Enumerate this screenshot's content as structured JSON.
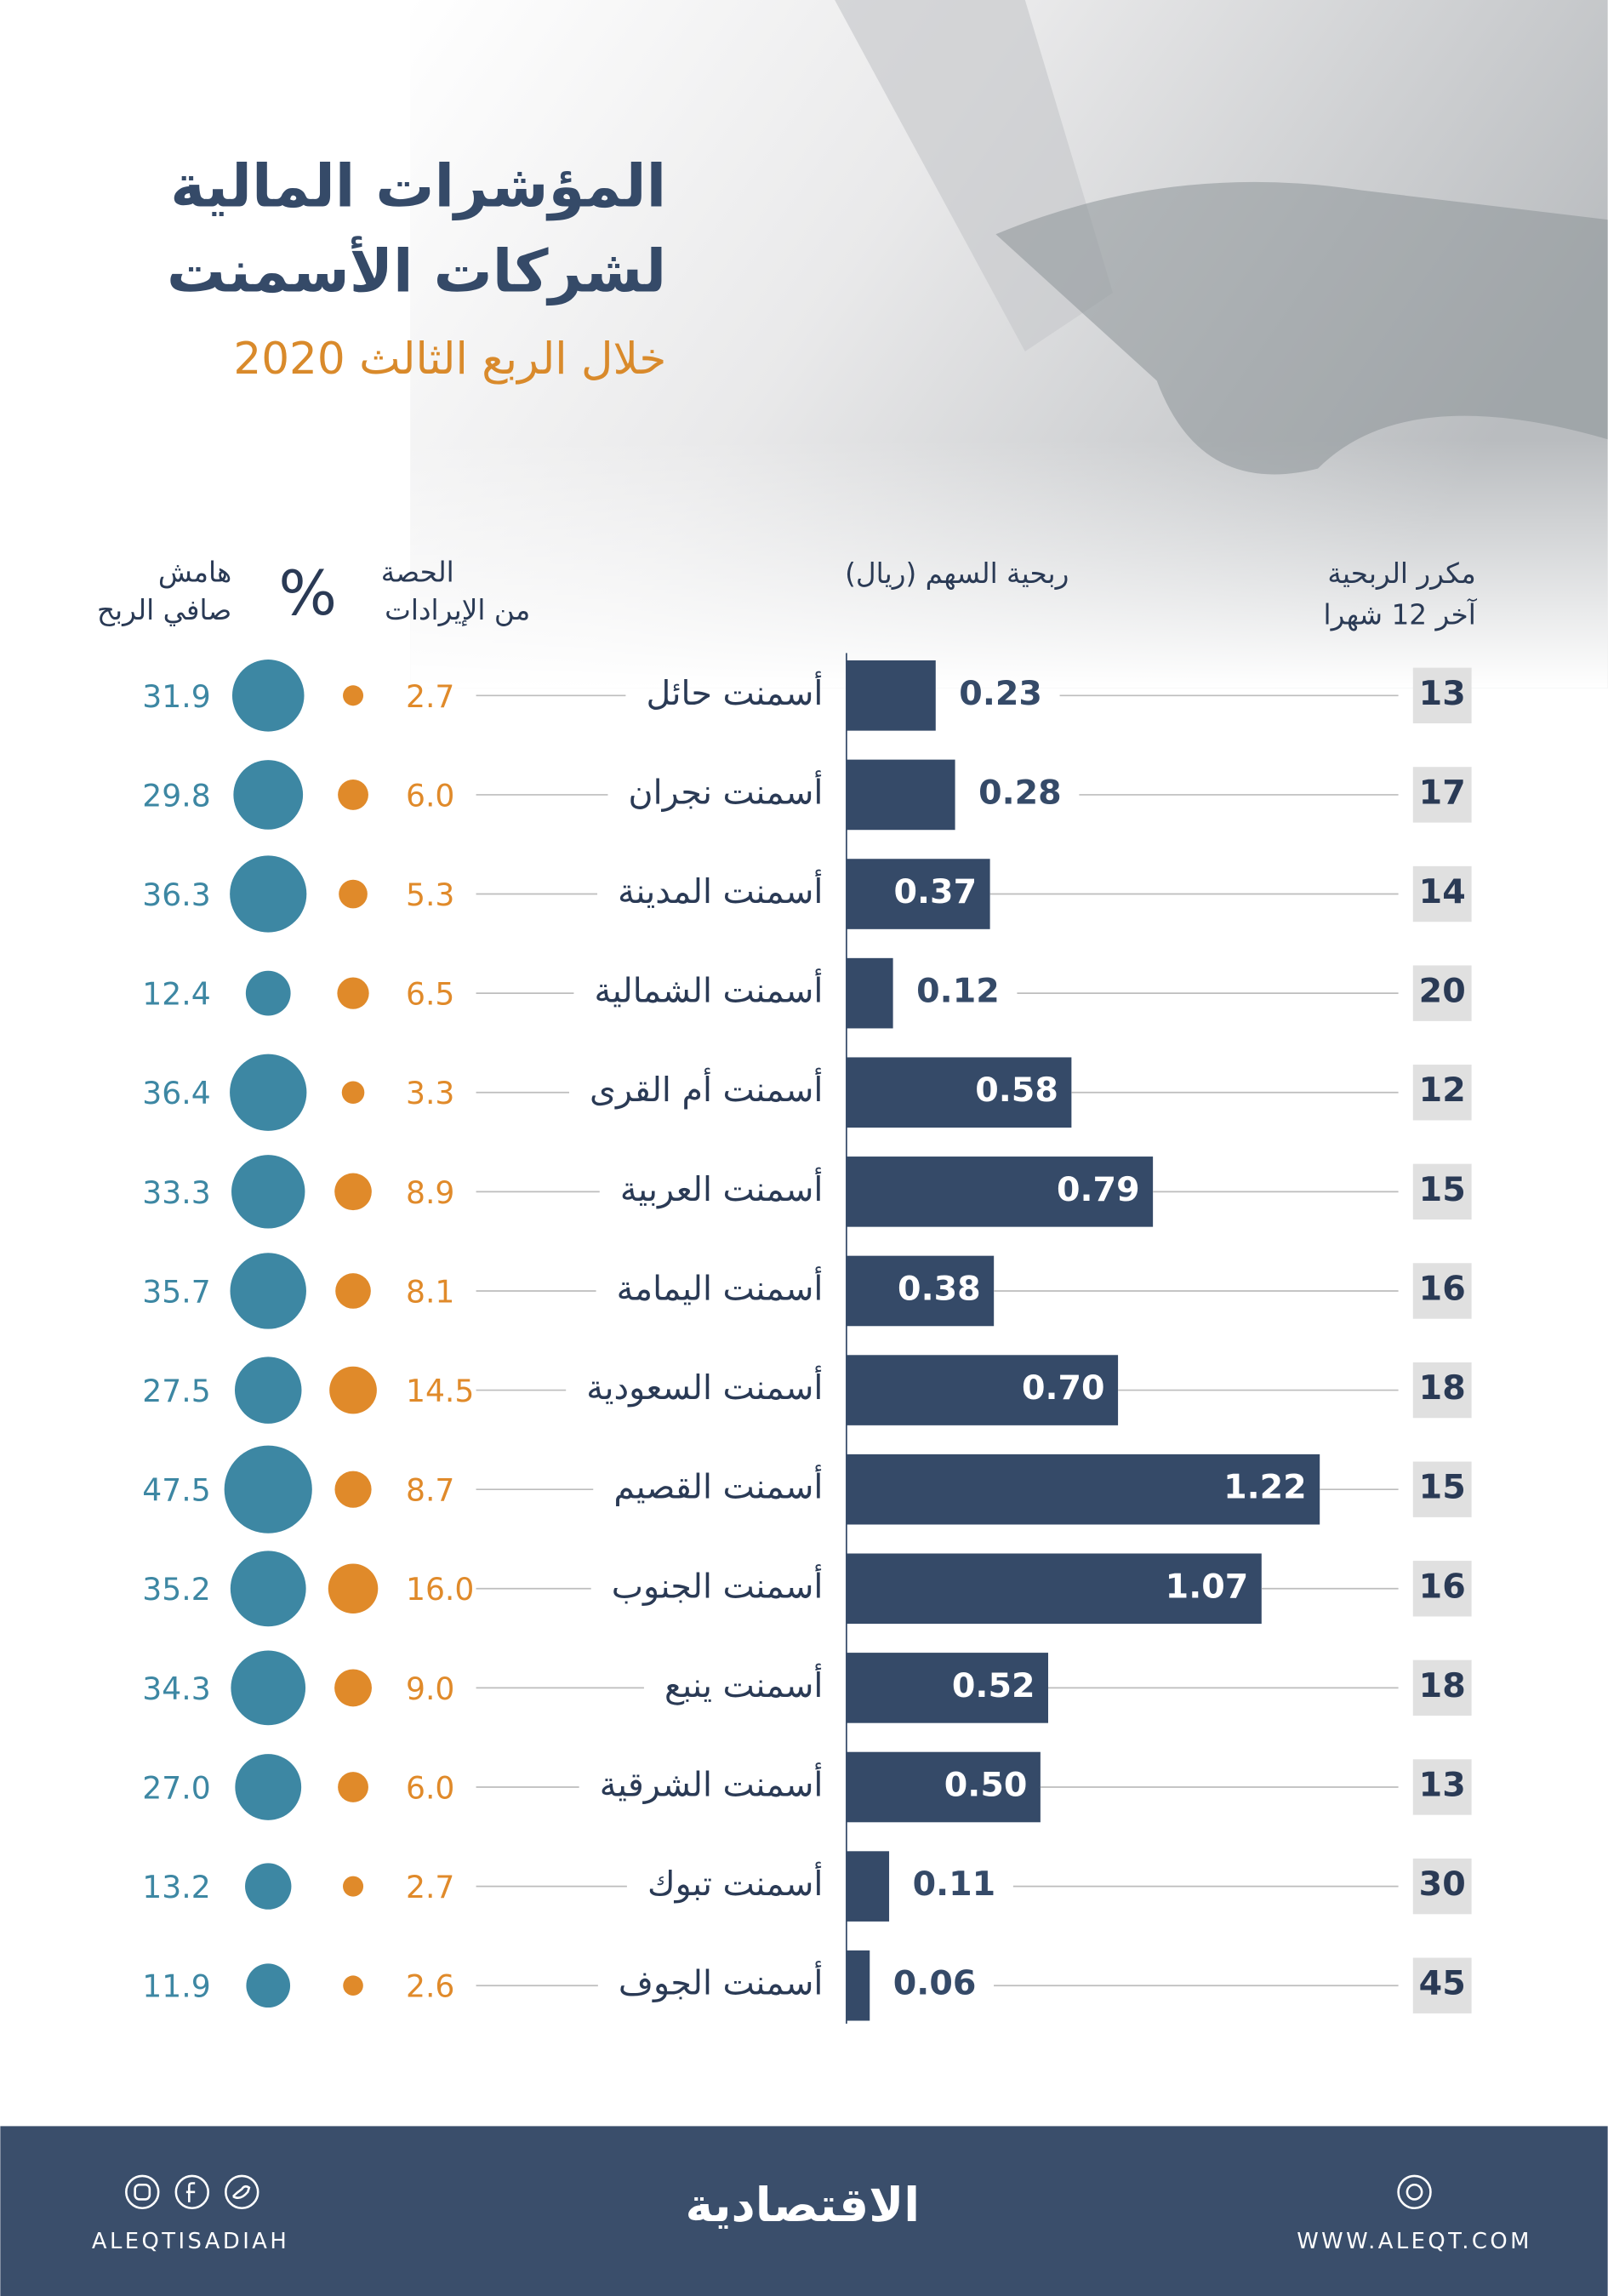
{
  "chart_data": {
    "type": "bar",
    "title": [
      "المؤشرات المالية",
      "لشركات الأسمنت"
    ],
    "subtitle": "خلال الربع الثالث 2020",
    "categories": [
      "أسمنت حائل",
      "أسمنت نجران",
      "أسمنت المدينة",
      "أسمنت الشمالية",
      "أسمنت أم القرى",
      "أسمنت العربية",
      "أسمنت اليمامة",
      "أسمنت السعودية",
      "أسمنت القصيم",
      "أسمنت الجنوب",
      "أسمنت ينبع",
      "أسمنت الشرقية",
      "أسمنت تبوك",
      "أسمنت الجوف"
    ],
    "unit": "%",
    "series": [
      {
        "name": [
          "مكرر الربحية",
          "آخر 12 شهرا"
        ],
        "mark": "box",
        "color": "#e0e0e0",
        "values": [
          13,
          17,
          14,
          20,
          12,
          15,
          16,
          18,
          15,
          16,
          18,
          13,
          30,
          45
        ]
      },
      {
        "name": [
          "ربحية السهم (ريال)"
        ],
        "mark": "bar",
        "color": "#354a68",
        "values": [
          0.23,
          0.28,
          0.37,
          0.12,
          0.58,
          0.79,
          0.38,
          0.7,
          1.22,
          1.07,
          0.52,
          0.5,
          0.11,
          0.06
        ],
        "value_labels": [
          "0.23",
          "0.28",
          "0.37",
          "0.12",
          "0.58",
          "0.79",
          "0.38",
          "0.70",
          "1.22",
          "1.07",
          "0.52",
          "0.50",
          "0.11",
          "0.06"
        ]
      },
      {
        "name": [
          "الحصة",
          "من الإيرادات"
        ],
        "mark": "circle",
        "color": "#e08a2a",
        "values": [
          2.7,
          6.0,
          5.3,
          6.5,
          3.3,
          8.9,
          8.1,
          14.5,
          8.7,
          16.0,
          9.0,
          6.0,
          2.7,
          2.6
        ],
        "value_labels": [
          "2.7",
          "6.0",
          "5.3",
          "6.5",
          "3.3",
          "8.9",
          "8.1",
          "14.5",
          "8.7",
          "16.0",
          "9.0",
          "6.0",
          "2.7",
          "2.6"
        ]
      },
      {
        "name": [
          "هامش",
          "صافي الربح"
        ],
        "mark": "circle",
        "color": "#3d87a3",
        "values": [
          31.9,
          29.8,
          36.3,
          12.4,
          36.4,
          33.3,
          35.7,
          27.5,
          47.5,
          35.2,
          34.3,
          27.0,
          13.2,
          11.9
        ],
        "value_labels": [
          "31.9",
          "29.8",
          "36.3",
          "12.4",
          "36.4",
          "33.3",
          "35.7",
          "27.5",
          "47.5",
          "35.2",
          "34.3",
          "27.0",
          "13.2",
          "11.9"
        ]
      }
    ]
  },
  "footer": {
    "logo": "الاقتصادية",
    "handle": "ALEQTISADIAH",
    "website": "WWW.ALEQT.COM"
  }
}
